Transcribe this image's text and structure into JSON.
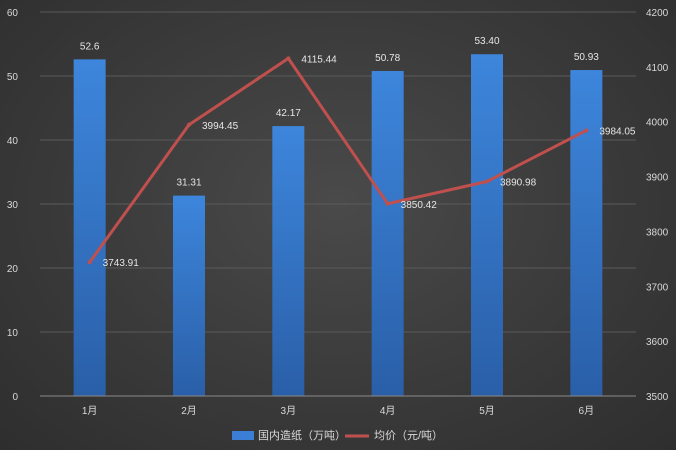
{
  "chart_data": {
    "type": "bar+line",
    "categories": [
      "1月",
      "2月",
      "3月",
      "4月",
      "5月",
      "6月"
    ],
    "series": [
      {
        "name": "国内造纸（万吨）",
        "type": "bar",
        "axis": "left",
        "values": [
          52.6,
          31.31,
          42.17,
          50.78,
          53.4,
          50.93
        ],
        "labels": [
          "52.6",
          "31.31",
          "42.17",
          "50.78",
          "53.40",
          "50.93"
        ],
        "color": "#3a7fd5"
      },
      {
        "name": "均价（元/吨）",
        "type": "line",
        "axis": "right",
        "values": [
          3743.91,
          3994.45,
          4115.44,
          3850.42,
          3890.98,
          3984.05
        ],
        "labels": [
          "3743.91",
          "3994.45",
          "4115.44",
          "3850.42",
          "3890.98",
          "3984.05"
        ],
        "color": "#c0504d"
      }
    ],
    "y_left": {
      "min": 0,
      "max": 60,
      "ticks": [
        "0",
        "10",
        "20",
        "30",
        "40",
        "50",
        "60"
      ]
    },
    "y_right": {
      "min": 3500,
      "max": 4200,
      "ticks": [
        "3500",
        "3600",
        "3700",
        "3800",
        "3900",
        "4000",
        "4100",
        "4200"
      ]
    },
    "grid": true,
    "legend_position": "bottom-center"
  }
}
